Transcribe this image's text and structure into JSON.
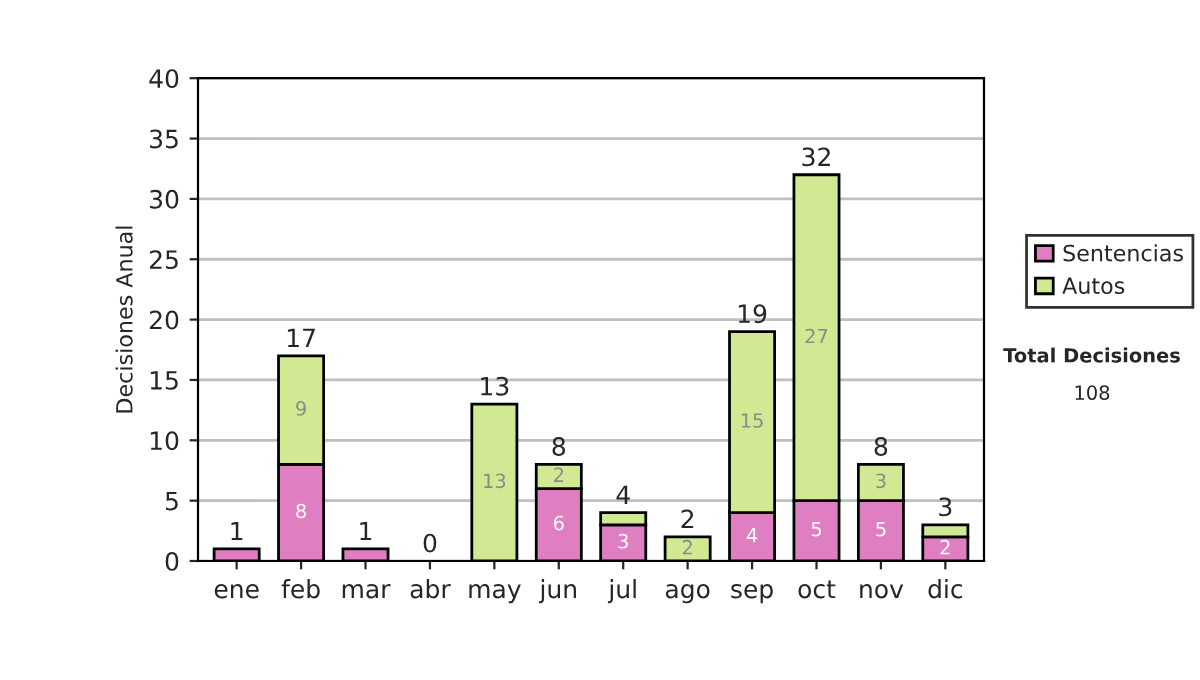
{
  "chart_data": {
    "type": "bar",
    "stacked": true,
    "ylabel": "Decisiones Anual",
    "categories": [
      "ene",
      "feb",
      "mar",
      "abr",
      "may",
      "jun",
      "jul",
      "ago",
      "sep",
      "oct",
      "nov",
      "dic"
    ],
    "series": [
      {
        "name": "Sentencias",
        "color": "#df7fc2",
        "values": [
          1,
          8,
          1,
          0,
          0,
          6,
          3,
          0,
          4,
          5,
          5,
          2
        ],
        "value_labels": [
          null,
          "8",
          null,
          null,
          null,
          "6",
          "3",
          null,
          "4",
          "5",
          "5",
          "2"
        ]
      },
      {
        "name": "Autos",
        "color": "#d2e994",
        "values": [
          0,
          9,
          0,
          0,
          13,
          2,
          1,
          2,
          15,
          27,
          3,
          1
        ],
        "value_labels": [
          null,
          "9",
          null,
          null,
          "13",
          "2",
          null,
          "2",
          "15",
          "27",
          "3",
          null
        ]
      }
    ],
    "totals": [
      "1",
      "17",
      "1",
      "0",
      "13",
      "8",
      "4",
      "2",
      "19",
      "32",
      "8",
      "3"
    ],
    "ylim": [
      0,
      40
    ],
    "yticks": [
      0,
      5,
      10,
      15,
      20,
      25,
      30,
      35,
      40
    ],
    "grid": "y",
    "legend": "right",
    "annotations": [
      "Total Decisiones",
      "108"
    ]
  }
}
